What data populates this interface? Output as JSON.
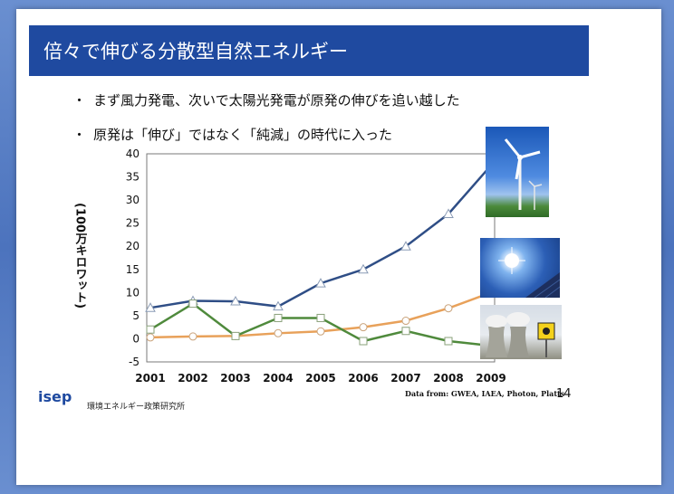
{
  "title": "倍々で伸びる分散型自然エネルギー",
  "bullets": [
    "まず風力発電、次いで太陽光発電が原発の伸びを追い越した",
    "原発は「伸び」ではなく「純減」の時代に入った"
  ],
  "bullet_marker": "・",
  "org": {
    "logo": "isep",
    "name": "環境エネルギー政策研究所"
  },
  "source": "Data from: GWEA, IAEA, Photon, Platts",
  "page_number": "14",
  "colors": {
    "title_bar": "#1f4aa0",
    "wind": "#2f4e86",
    "solar": "#e8a15a",
    "nuclear": "#4f8a3c"
  },
  "photos": {
    "wind": "wind-turbine-photo",
    "solar": "solar-panel-photo",
    "nuclear": "nuclear-plant-photo"
  },
  "chart_data": {
    "type": "line",
    "x": [
      "2001",
      "2002",
      "2003",
      "2004",
      "2005",
      "2006",
      "2007",
      "2008",
      "2009"
    ],
    "ylabel": "(100万キロワット)",
    "ylim": [
      -5,
      40
    ],
    "yticks": [
      "40",
      "35",
      "30",
      "25",
      "20",
      "15",
      "10",
      "5",
      "0",
      "-5"
    ],
    "grid": false,
    "legend": "none",
    "series": [
      {
        "key": "wind",
        "marker": "triangle",
        "values": [
          6.7,
          8.2,
          8.1,
          7.0,
          12.0,
          15.0,
          20.0,
          27.0,
          37.5
        ]
      },
      {
        "key": "solar",
        "marker": "circle",
        "values": [
          0.3,
          0.5,
          0.6,
          1.2,
          1.6,
          2.5,
          3.9,
          6.6,
          10.0
        ]
      },
      {
        "key": "nuclear",
        "marker": "square",
        "values": [
          2.0,
          7.6,
          0.6,
          4.5,
          4.5,
          -0.5,
          1.7,
          -0.5,
          -1.5
        ]
      }
    ]
  }
}
